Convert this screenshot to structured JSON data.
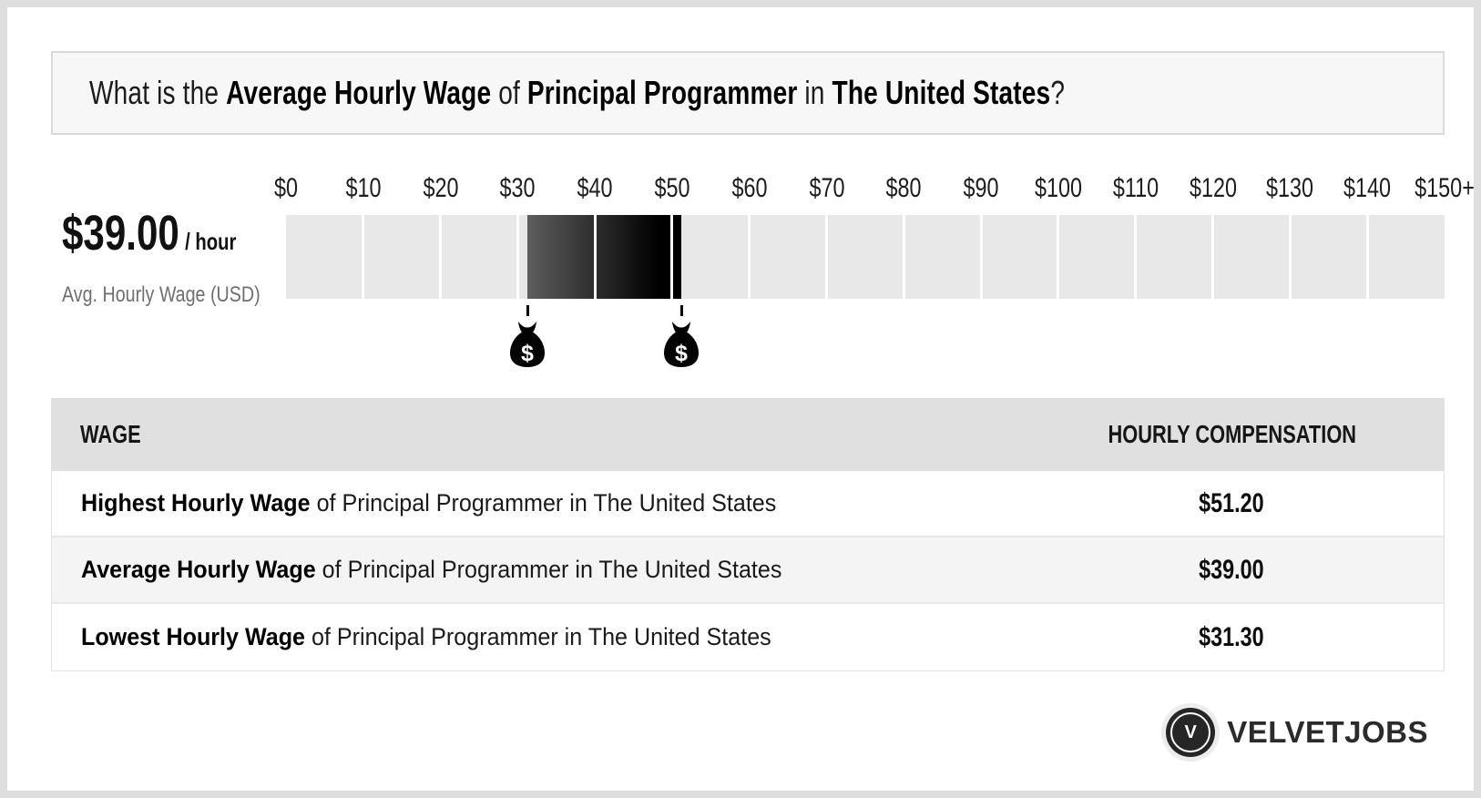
{
  "question": {
    "p1": "What is the ",
    "p2": "Average Hourly Wage",
    "p3": " of ",
    "p4": "Principal Programmer",
    "p5": " in ",
    "p6": "The United States",
    "p7": "?"
  },
  "summary": {
    "amount": "$39.00",
    "unit": "/ hour",
    "caption": "Avg. Hourly Wage (USD)"
  },
  "chart_data": {
    "type": "range-scale",
    "axis_min": 0,
    "axis_max": 150,
    "cells": 15,
    "axis_labels": [
      "$0",
      "$10",
      "$20",
      "$30",
      "$40",
      "$50",
      "$60",
      "$70",
      "$80",
      "$90",
      "$100",
      "$110",
      "$120",
      "$130",
      "$140",
      "$150+"
    ],
    "lowest_wage": 31.3,
    "average_wage": 39.0,
    "highest_wage": 51.2,
    "range_fill_start_color": "#5e5e5e",
    "range_fill_end_color": "#000000",
    "track_color": "#e8e8e8",
    "markers": [
      {
        "value": 31.3,
        "icon": "money-bag-icon",
        "symbol": "$"
      },
      {
        "value": 51.2,
        "icon": "money-bag-icon",
        "symbol": "$"
      }
    ]
  },
  "table": {
    "columns": [
      "WAGE",
      "HOURLY COMPENSATION"
    ],
    "rows": [
      {
        "bold": "Highest Hourly Wage",
        "rest": " of Principal Programmer in The United States",
        "value": "$51.20"
      },
      {
        "bold": "Average Hourly Wage",
        "rest": " of Principal Programmer in The United States",
        "value": "$39.00"
      },
      {
        "bold": "Lowest Hourly Wage",
        "rest": " of Principal Programmer in The United States",
        "value": "$31.30"
      }
    ]
  },
  "branding": {
    "logo_letter": "V",
    "logo_text": "VELVETJOBS"
  }
}
